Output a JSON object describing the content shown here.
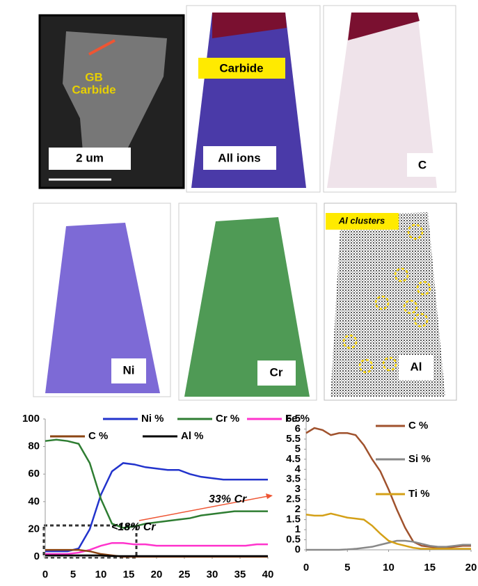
{
  "figure_labels": {
    "sem_gb": "GB",
    "sem_carbide": "Carbide",
    "scale_bar": "2 um",
    "carbide": "Carbide",
    "all_ions": "All ions",
    "c": "C",
    "ni": "Ni",
    "cr": "Cr",
    "al_clusters": "Al clusters",
    "al": "Al"
  },
  "chart_data": [
    {
      "type": "line",
      "x": [
        0,
        2,
        4,
        6,
        8,
        10,
        12,
        14,
        16,
        18,
        20,
        22,
        24,
        26,
        28,
        30,
        32,
        34,
        36,
        38,
        40
      ],
      "series": [
        {
          "name": "Ni %",
          "color": "#2233cc",
          "values": [
            4,
            4,
            4,
            6,
            20,
            45,
            62,
            68,
            67,
            65,
            64,
            63,
            63,
            60,
            58,
            57,
            56,
            56,
            56,
            56,
            56
          ]
        },
        {
          "name": "Cr %",
          "color": "#2e7d32",
          "values": [
            84,
            85,
            84,
            82,
            68,
            42,
            24,
            21,
            22,
            24,
            25,
            26,
            27,
            28,
            30,
            31,
            32,
            33,
            33,
            33,
            33
          ]
        },
        {
          "name": "Fe %",
          "color": "#ff33cc",
          "values": [
            2,
            2,
            2,
            3,
            5,
            8,
            10,
            10,
            9,
            9,
            8,
            8,
            8,
            8,
            8,
            8,
            8,
            8,
            8,
            9,
            9
          ]
        },
        {
          "name": "C %",
          "color": "#8b4513",
          "values": [
            5,
            5,
            5,
            5,
            4,
            2,
            1,
            0,
            0,
            0,
            0,
            0,
            0,
            0,
            0,
            0,
            0,
            0,
            0,
            0,
            0
          ]
        },
        {
          "name": "Al %",
          "color": "#000000",
          "values": [
            1,
            1,
            1,
            1,
            1,
            1,
            0.5,
            0.5,
            0.5,
            0.5,
            0.5,
            0.5,
            0.5,
            0.5,
            0.5,
            0.5,
            0.5,
            0.5,
            0.5,
            0.5,
            0.5
          ]
        }
      ],
      "xlim": [
        0,
        40
      ],
      "xticks": [
        0,
        5,
        10,
        15,
        20,
        25,
        30,
        35,
        40
      ],
      "ylim": [
        0,
        100
      ],
      "yticks": [
        0,
        20,
        40,
        60,
        80,
        100
      ],
      "annotations": [
        "<18% Cr",
        "33% Cr"
      ]
    },
    {
      "type": "line",
      "x": [
        0,
        1,
        2,
        3,
        4,
        5,
        6,
        7,
        8,
        9,
        10,
        11,
        12,
        13,
        14,
        15,
        16,
        17,
        18,
        19,
        20
      ],
      "series": [
        {
          "name": "C %",
          "color": "#a0522d",
          "values": [
            5.8,
            6.05,
            5.95,
            5.7,
            5.8,
            5.8,
            5.7,
            5.2,
            4.5,
            3.9,
            3.0,
            2.0,
            1.1,
            0.4,
            0.2,
            0.15,
            0.1,
            0.1,
            0.15,
            0.2,
            0.2
          ]
        },
        {
          "name": "Si %",
          "color": "#888888",
          "values": [
            0,
            0,
            0,
            0,
            0,
            0.02,
            0.05,
            0.1,
            0.15,
            0.25,
            0.35,
            0.45,
            0.45,
            0.4,
            0.3,
            0.2,
            0.15,
            0.15,
            0.2,
            0.25,
            0.25
          ]
        },
        {
          "name": "Ti %",
          "color": "#d4a017",
          "values": [
            1.75,
            1.7,
            1.7,
            1.8,
            1.7,
            1.6,
            1.55,
            1.5,
            1.2,
            0.8,
            0.45,
            0.3,
            0.2,
            0.1,
            0.05,
            0.05,
            0.05,
            0.05,
            0.05,
            0.05,
            0.05
          ]
        }
      ],
      "xlim": [
        0,
        20
      ],
      "xticks": [
        0,
        5,
        10,
        15,
        20
      ],
      "ylim": [
        0,
        6.5
      ],
      "yticks": [
        0,
        0.5,
        1,
        1.5,
        2,
        2.5,
        3,
        3.5,
        4,
        4.5,
        5,
        5.5,
        6,
        6.5
      ]
    }
  ]
}
